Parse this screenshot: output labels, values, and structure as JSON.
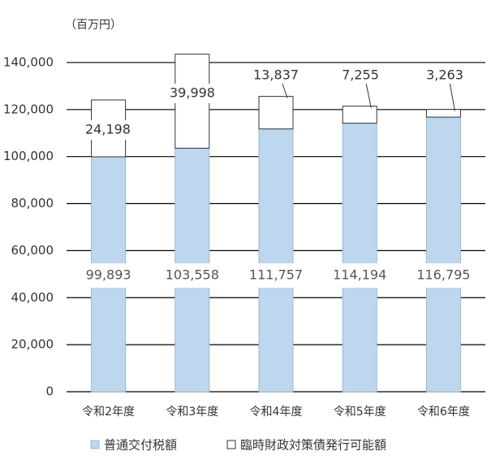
{
  "chart_data": {
    "type": "stacked-bar",
    "unit_label": "（百万円）",
    "categories": [
      "令和2年度",
      "令和3年度",
      "令和4年度",
      "令和5年度",
      "令和6年度"
    ],
    "series": [
      {
        "name": "普通交付税額",
        "color": "#bdd7ee",
        "values": [
          99893,
          103558,
          111757,
          114194,
          116795
        ],
        "value_labels": [
          "99,893",
          "103,558",
          "111,757",
          "114,194",
          "116,795"
        ]
      },
      {
        "name": "臨時財政対策債発行可能額",
        "color": "#ffffff",
        "values": [
          24198,
          39998,
          13837,
          7255,
          3263
        ],
        "value_labels": [
          "24,198",
          "39,998",
          "13,837",
          "7,255",
          "3,263"
        ]
      }
    ],
    "ylim": [
      0,
      150000
    ],
    "yticks": [
      0,
      {
        "value": 20000,
        "label": "20,000"
      },
      {
        "value": 40000,
        "label": "40,000"
      },
      {
        "value": 60000,
        "label": "60,000"
      },
      {
        "value": 80000,
        "label": "80,000"
      },
      {
        "value": 100000,
        "label": "100,000"
      },
      {
        "value": 120000,
        "label": "120,000"
      },
      {
        "value": 140000,
        "label": "140,000"
      }
    ],
    "grid": true
  }
}
